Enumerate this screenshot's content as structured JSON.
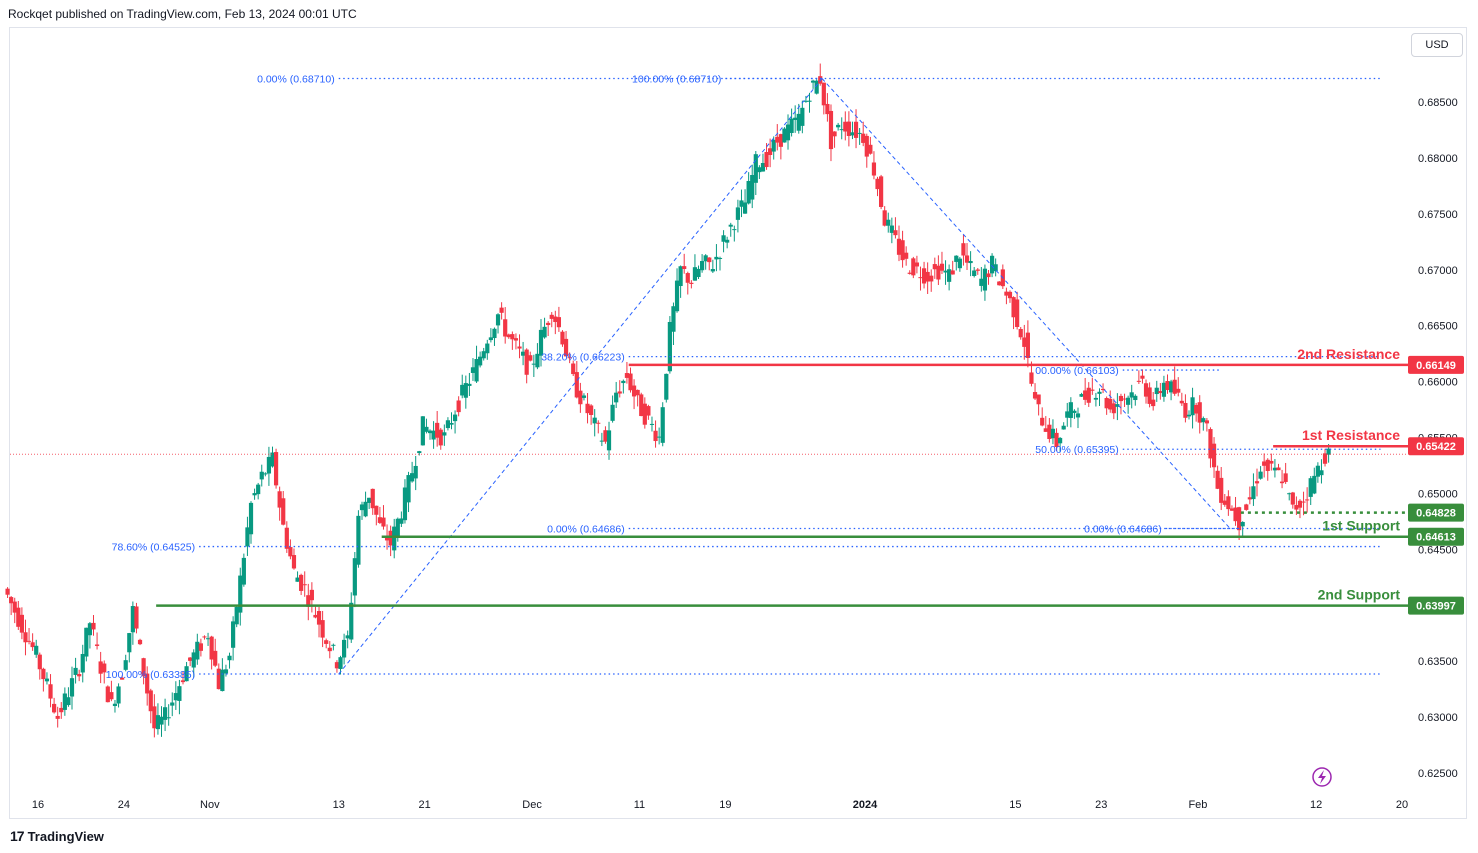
{
  "header": {
    "publish_line": "Rockqet published on TradingView.com, Feb 13, 2024 00:01 UTC"
  },
  "currency_button": "USD",
  "footer": {
    "brand": "TradingView",
    "logo_mark": "17"
  },
  "chart_data": {
    "type": "candlestick",
    "y_axis": {
      "ticks": [
        0.625,
        0.63,
        0.635,
        0.64,
        0.645,
        0.65,
        0.655,
        0.66,
        0.665,
        0.67,
        0.675,
        0.68,
        0.685
      ],
      "tick_labels": [
        "0.62500",
        "0.63000",
        "0.63500",
        "0.64000",
        "0.64500",
        "0.65000",
        "0.65500",
        "0.66000",
        "0.66500",
        "0.67000",
        "0.67500",
        "0.68000",
        "0.68500"
      ],
      "range": [
        0.6225,
        0.6915
      ]
    },
    "x_axis": {
      "range": [
        "2023-10-13",
        "2024-02-20"
      ],
      "ticks": [
        {
          "date": "2023-10-16",
          "label": "16",
          "bold": false
        },
        {
          "date": "2023-10-24",
          "label": "24",
          "bold": false
        },
        {
          "date": "2023-11-01",
          "label": "Nov",
          "bold": false
        },
        {
          "date": "2023-11-13",
          "label": "13",
          "bold": false
        },
        {
          "date": "2023-11-21",
          "label": "21",
          "bold": false
        },
        {
          "date": "2023-12-01",
          "label": "Dec",
          "bold": false
        },
        {
          "date": "2023-12-11",
          "label": "11",
          "bold": false
        },
        {
          "date": "2023-12-19",
          "label": "19",
          "bold": false
        },
        {
          "date": "2024-01-01",
          "label": "2024",
          "bold": true
        },
        {
          "date": "2024-01-15",
          "label": "15",
          "bold": false
        },
        {
          "date": "2024-01-23",
          "label": "23",
          "bold": false
        },
        {
          "date": "2024-02-01",
          "label": "Feb",
          "bold": false
        },
        {
          "date": "2024-02-12",
          "label": "12",
          "bold": false
        },
        {
          "date": "2024-02-20",
          "label": "20",
          "bold": false
        }
      ]
    },
    "price_path": [
      [
        "2023-10-13",
        0.6415
      ],
      [
        "2023-10-16",
        0.6355
      ],
      [
        "2023-10-18",
        0.63
      ],
      [
        "2023-10-20",
        0.6345
      ],
      [
        "2023-10-21",
        0.6385
      ],
      [
        "2023-10-22",
        0.6345
      ],
      [
        "2023-10-23",
        0.631
      ],
      [
        "2023-10-24",
        0.634
      ],
      [
        "2023-10-25",
        0.6395
      ],
      [
        "2023-10-26",
        0.634
      ],
      [
        "2023-10-27",
        0.629
      ],
      [
        "2023-10-28",
        0.63
      ],
      [
        "2023-10-30",
        0.6345
      ],
      [
        "2023-11-01",
        0.6375
      ],
      [
        "2023-11-02",
        0.633
      ],
      [
        "2023-11-03",
        0.6355
      ],
      [
        "2023-11-05",
        0.649
      ],
      [
        "2023-11-06",
        0.6515
      ],
      [
        "2023-11-07",
        0.653
      ],
      [
        "2023-11-08",
        0.647
      ],
      [
        "2023-11-09",
        0.643
      ],
      [
        "2023-11-10",
        0.6415
      ],
      [
        "2023-11-12",
        0.637
      ],
      [
        "2023-11-13",
        0.635
      ],
      [
        "2023-11-14",
        0.637
      ],
      [
        "2023-11-15",
        0.648
      ],
      [
        "2023-11-16",
        0.65
      ],
      [
        "2023-11-17",
        0.647
      ],
      [
        "2023-11-18",
        0.6455
      ],
      [
        "2023-11-19",
        0.6485
      ],
      [
        "2023-11-20",
        0.652
      ],
      [
        "2023-11-21",
        0.656
      ],
      [
        "2023-11-23",
        0.655
      ],
      [
        "2023-11-24",
        0.6575
      ],
      [
        "2023-11-26",
        0.6615
      ],
      [
        "2023-11-27",
        0.664
      ],
      [
        "2023-11-28",
        0.666
      ],
      [
        "2023-11-29",
        0.664
      ],
      [
        "2023-11-30",
        0.6625
      ],
      [
        "2023-12-01",
        0.661
      ],
      [
        "2023-12-02",
        0.664
      ],
      [
        "2023-12-03",
        0.6665
      ],
      [
        "2023-12-04",
        0.664
      ],
      [
        "2023-12-05",
        0.66
      ],
      [
        "2023-12-06",
        0.658
      ],
      [
        "2023-12-07",
        0.656
      ],
      [
        "2023-12-08",
        0.6545
      ],
      [
        "2023-12-09",
        0.659
      ],
      [
        "2023-12-10",
        0.6605
      ],
      [
        "2023-12-11",
        0.658
      ],
      [
        "2023-12-12",
        0.6565
      ],
      [
        "2023-12-13",
        0.655
      ],
      [
        "2023-12-14",
        0.6645
      ],
      [
        "2023-12-15",
        0.67
      ],
      [
        "2023-12-16",
        0.669
      ],
      [
        "2023-12-17",
        0.6705
      ],
      [
        "2023-12-18",
        0.6705
      ],
      [
        "2023-12-19",
        0.6725
      ],
      [
        "2023-12-20",
        0.6745
      ],
      [
        "2023-12-21",
        0.676
      ],
      [
        "2023-12-22",
        0.6795
      ],
      [
        "2023-12-23",
        0.68
      ],
      [
        "2023-12-24",
        0.6815
      ],
      [
        "2023-12-26",
        0.6835
      ],
      [
        "2023-12-27",
        0.686
      ],
      [
        "2023-12-28",
        0.6871
      ],
      [
        "2023-12-29",
        0.6815
      ],
      [
        "2023-12-30",
        0.683
      ],
      [
        "2024-01-01",
        0.682
      ],
      [
        "2024-01-02",
        0.679
      ],
      [
        "2024-01-03",
        0.6745
      ],
      [
        "2024-01-04",
        0.6725
      ],
      [
        "2024-01-05",
        0.6705
      ],
      [
        "2024-01-07",
        0.6695
      ],
      [
        "2024-01-08",
        0.67
      ],
      [
        "2024-01-09",
        0.6695
      ],
      [
        "2024-01-10",
        0.6715
      ],
      [
        "2024-01-11",
        0.67
      ],
      [
        "2024-01-12",
        0.669
      ],
      [
        "2024-01-13",
        0.6705
      ],
      [
        "2024-01-14",
        0.6685
      ],
      [
        "2024-01-15",
        0.6665
      ],
      [
        "2024-01-16",
        0.6635
      ],
      [
        "2024-01-17",
        0.658
      ],
      [
        "2024-01-18",
        0.656
      ],
      [
        "2024-01-19",
        0.6545
      ],
      [
        "2024-01-20",
        0.657
      ],
      [
        "2024-01-22",
        0.659
      ],
      [
        "2024-01-23",
        0.6595
      ],
      [
        "2024-01-24",
        0.6575
      ],
      [
        "2024-01-25",
        0.6585
      ],
      [
        "2024-01-26",
        0.659
      ],
      [
        "2024-01-27",
        0.66
      ],
      [
        "2024-01-28",
        0.658
      ],
      [
        "2024-01-29",
        0.66
      ],
      [
        "2024-01-30",
        0.659
      ],
      [
        "2024-01-31",
        0.6575
      ],
      [
        "2024-02-01",
        0.658
      ],
      [
        "2024-02-02",
        0.6555
      ],
      [
        "2024-02-03",
        0.6505
      ],
      [
        "2024-02-04",
        0.649
      ],
      [
        "2024-02-05",
        0.6475
      ],
      [
        "2024-02-06",
        0.6495
      ],
      [
        "2024-02-07",
        0.6525
      ],
      [
        "2024-02-08",
        0.652
      ],
      [
        "2024-02-09",
        0.6515
      ],
      [
        "2024-02-10",
        0.6485
      ],
      [
        "2024-02-11",
        0.6495
      ],
      [
        "2024-02-12",
        0.6515
      ],
      [
        "2024-02-13",
        0.6535
      ]
    ],
    "fib_retracements": [
      {
        "name": "rally-fib",
        "levels": [
          {
            "price": 0.6871,
            "label": "0.00% (0.68710)",
            "from": "2023-11-13",
            "to": "2024-02-18"
          },
          {
            "price": 0.66223,
            "label": "38.20% (0.66223)",
            "from": "2023-12-10",
            "to": "2024-02-18"
          },
          {
            "price": 0.64686,
            "label": "0.00% (0.64686)",
            "from": "2023-12-10",
            "to": "2024-02-05"
          },
          {
            "price": 0.64525,
            "label": "78.60% (0.64525)",
            "from": "2023-10-31",
            "to": "2024-02-18"
          },
          {
            "price": 0.63385,
            "label": "100.00% (0.63385)",
            "from": "2023-10-31",
            "to": "2024-02-18"
          }
        ]
      },
      {
        "name": "decline-fib",
        "levels": [
          {
            "price": 0.6871,
            "label": "100.00% (0.68710)",
            "from": "2023-12-19",
            "to": "2023-12-28"
          },
          {
            "price": 0.66103,
            "label": "00.00% (0.66103)",
            "from": "2024-01-25",
            "to": "2024-02-03"
          },
          {
            "price": 0.65395,
            "label": "50.00% (0.65395)",
            "from": "2024-01-25",
            "to": "2024-02-18"
          },
          {
            "price": 0.64686,
            "label": "0.00% (0.64686)",
            "from": "2024-01-29",
            "to": "2024-02-18"
          }
        ]
      }
    ],
    "trend_lines": [
      {
        "from": [
          "2023-11-13",
          0.63385
        ],
        "to": [
          "2023-12-28",
          0.6871
        ]
      },
      {
        "from": [
          "2023-12-28",
          0.6871
        ],
        "to": [
          "2024-02-04",
          0.64686
        ]
      }
    ],
    "levels": [
      {
        "name": "2nd Resistance",
        "price": 0.66149,
        "price_label": "0.66149",
        "color": "#f23645",
        "from": "2023-12-10",
        "style": "solid"
      },
      {
        "name": "1st Resistance",
        "price": 0.65422,
        "price_label": "0.65422",
        "color": "#f23645",
        "from": "2024-02-08",
        "style": "solid"
      },
      {
        "name": "",
        "price": 0.64828,
        "price_label": "0.64828",
        "color": "#388e3c",
        "from": "2024-02-05",
        "style": "dotted"
      },
      {
        "name": "1st Support",
        "price": 0.64613,
        "price_label": "0.64613",
        "color": "#388e3c",
        "from": "2023-11-17",
        "style": "solid"
      },
      {
        "name": "2nd Support",
        "price": 0.63997,
        "price_label": "0.63997",
        "color": "#388e3c",
        "from": "2023-10-27",
        "style": "solid"
      }
    ],
    "current_price": 0.6535,
    "colors": {
      "up": "#089981",
      "down": "#f23645",
      "fib": "#2962ff",
      "grid": "#f0f3fa",
      "axis_text": "#131722"
    }
  }
}
